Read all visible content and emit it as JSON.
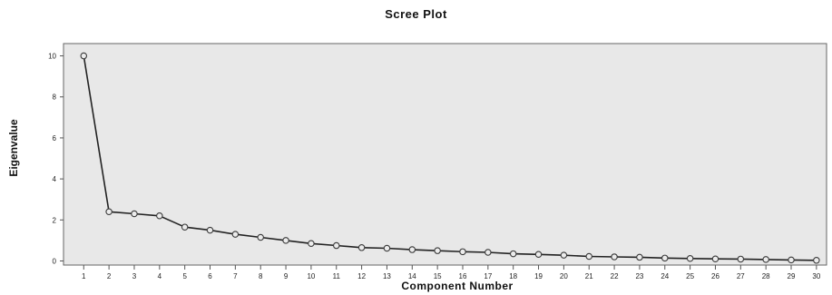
{
  "chart_data": {
    "type": "line",
    "title": "Scree Plot",
    "xlabel": "Component Number",
    "ylabel": "Eigenvalue",
    "x": [
      1,
      2,
      3,
      4,
      5,
      6,
      7,
      8,
      9,
      10,
      11,
      12,
      13,
      14,
      15,
      16,
      17,
      18,
      19,
      20,
      21,
      22,
      23,
      24,
      25,
      26,
      27,
      28,
      29,
      30
    ],
    "x_tick_labels": [
      "1",
      "2",
      "3",
      "4",
      "5",
      "6",
      "7",
      "8",
      "9",
      "10",
      "11",
      "12",
      "13",
      "14",
      "15",
      "16",
      "17",
      "18",
      "19",
      "20",
      "21",
      "22",
      "23",
      "24",
      "25",
      "26",
      "27",
      "28",
      "29",
      "30"
    ],
    "series": [
      {
        "values": [
          10.0,
          2.4,
          2.3,
          2.2,
          1.65,
          1.5,
          1.3,
          1.15,
          1.0,
          0.85,
          0.75,
          0.65,
          0.62,
          0.55,
          0.5,
          0.45,
          0.42,
          0.35,
          0.32,
          0.28,
          0.22,
          0.2,
          0.18,
          0.14,
          0.12,
          0.1,
          0.09,
          0.07,
          0.05,
          0.03
        ]
      }
    ],
    "y_ticks": [
      0,
      2,
      4,
      6,
      8,
      10
    ],
    "ylim": [
      -0.2,
      10.6
    ],
    "xlim": [
      0.2,
      30.4
    ],
    "grid": false,
    "colors": {
      "plot_background": "#e8e8e8",
      "line": "#222222",
      "marker_fill": "#ececec",
      "marker_stroke": "#3a3a3a"
    }
  }
}
